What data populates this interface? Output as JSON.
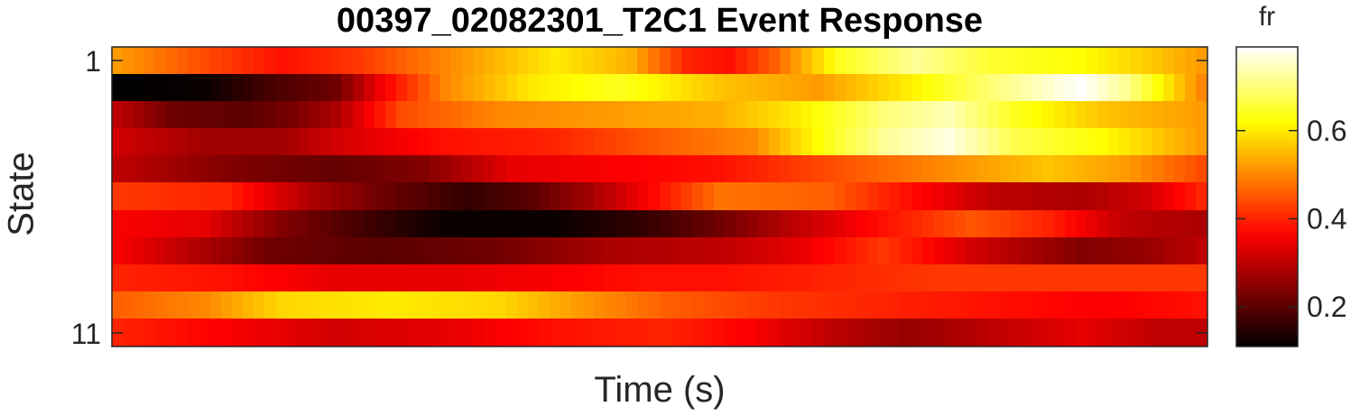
{
  "chart_data": {
    "type": "heatmap",
    "title": "00397_02082301_T2C1 Event Response",
    "xlabel": "Time (s)",
    "ylabel": "State",
    "y_ticks": [
      1,
      11
    ],
    "colorbar": {
      "label": "fr",
      "colormap": "hot",
      "range": [
        0.11,
        0.79
      ],
      "ticks": [
        0.2,
        0.4,
        0.6
      ]
    },
    "n_cols": 100,
    "rows": [
      {
        "state": 1,
        "keypoints": [
          [
            0,
            0.52
          ],
          [
            8,
            0.44
          ],
          [
            15,
            0.38
          ],
          [
            22,
            0.42
          ],
          [
            30,
            0.5
          ],
          [
            40,
            0.6
          ],
          [
            47,
            0.54
          ],
          [
            52,
            0.4
          ],
          [
            56,
            0.38
          ],
          [
            60,
            0.46
          ],
          [
            66,
            0.64
          ],
          [
            73,
            0.72
          ],
          [
            80,
            0.65
          ],
          [
            88,
            0.62
          ],
          [
            95,
            0.56
          ],
          [
            99,
            0.52
          ]
        ]
      },
      {
        "state": 2,
        "keypoints": [
          [
            0,
            0.11
          ],
          [
            8,
            0.12
          ],
          [
            14,
            0.18
          ],
          [
            20,
            0.22
          ],
          [
            24,
            0.35
          ],
          [
            30,
            0.5
          ],
          [
            38,
            0.6
          ],
          [
            46,
            0.64
          ],
          [
            55,
            0.56
          ],
          [
            64,
            0.52
          ],
          [
            72,
            0.6
          ],
          [
            80,
            0.7
          ],
          [
            88,
            0.79
          ],
          [
            92,
            0.72
          ],
          [
            97,
            0.56
          ],
          [
            99,
            0.5
          ]
        ]
      },
      {
        "state": 3,
        "keypoints": [
          [
            0,
            0.3
          ],
          [
            5,
            0.22
          ],
          [
            12,
            0.2
          ],
          [
            16,
            0.23
          ],
          [
            20,
            0.28
          ],
          [
            26,
            0.44
          ],
          [
            35,
            0.5
          ],
          [
            45,
            0.52
          ],
          [
            55,
            0.54
          ],
          [
            62,
            0.6
          ],
          [
            70,
            0.7
          ],
          [
            76,
            0.74
          ],
          [
            82,
            0.64
          ],
          [
            90,
            0.56
          ],
          [
            99,
            0.52
          ]
        ]
      },
      {
        "state": 4,
        "keypoints": [
          [
            0,
            0.32
          ],
          [
            8,
            0.27
          ],
          [
            15,
            0.27
          ],
          [
            20,
            0.32
          ],
          [
            30,
            0.38
          ],
          [
            40,
            0.4
          ],
          [
            50,
            0.46
          ],
          [
            58,
            0.5
          ],
          [
            65,
            0.64
          ],
          [
            70,
            0.72
          ],
          [
            76,
            0.77
          ],
          [
            82,
            0.67
          ],
          [
            90,
            0.62
          ],
          [
            99,
            0.52
          ]
        ]
      },
      {
        "state": 5,
        "keypoints": [
          [
            0,
            0.3
          ],
          [
            10,
            0.24
          ],
          [
            20,
            0.21
          ],
          [
            28,
            0.24
          ],
          [
            36,
            0.34
          ],
          [
            45,
            0.36
          ],
          [
            55,
            0.38
          ],
          [
            65,
            0.44
          ],
          [
            75,
            0.5
          ],
          [
            85,
            0.56
          ],
          [
            92,
            0.52
          ],
          [
            99,
            0.44
          ]
        ]
      },
      {
        "state": 6,
        "keypoints": [
          [
            0,
            0.42
          ],
          [
            10,
            0.4
          ],
          [
            18,
            0.28
          ],
          [
            24,
            0.22
          ],
          [
            32,
            0.16
          ],
          [
            38,
            0.2
          ],
          [
            45,
            0.3
          ],
          [
            55,
            0.48
          ],
          [
            65,
            0.46
          ],
          [
            72,
            0.38
          ],
          [
            80,
            0.3
          ],
          [
            88,
            0.28
          ],
          [
            94,
            0.32
          ],
          [
            99,
            0.4
          ]
        ]
      },
      {
        "state": 7,
        "keypoints": [
          [
            0,
            0.36
          ],
          [
            8,
            0.34
          ],
          [
            15,
            0.24
          ],
          [
            22,
            0.18
          ],
          [
            30,
            0.12
          ],
          [
            40,
            0.12
          ],
          [
            48,
            0.16
          ],
          [
            55,
            0.22
          ],
          [
            62,
            0.3
          ],
          [
            70,
            0.38
          ],
          [
            78,
            0.45
          ],
          [
            85,
            0.4
          ],
          [
            92,
            0.3
          ],
          [
            99,
            0.28
          ]
        ]
      },
      {
        "state": 8,
        "keypoints": [
          [
            0,
            0.36
          ],
          [
            6,
            0.3
          ],
          [
            14,
            0.22
          ],
          [
            24,
            0.2
          ],
          [
            34,
            0.22
          ],
          [
            45,
            0.28
          ],
          [
            55,
            0.3
          ],
          [
            62,
            0.34
          ],
          [
            70,
            0.42
          ],
          [
            78,
            0.32
          ],
          [
            88,
            0.24
          ],
          [
            94,
            0.26
          ],
          [
            99,
            0.3
          ]
        ]
      },
      {
        "state": 9,
        "keypoints": [
          [
            0,
            0.4
          ],
          [
            10,
            0.38
          ],
          [
            20,
            0.34
          ],
          [
            30,
            0.34
          ],
          [
            40,
            0.36
          ],
          [
            48,
            0.38
          ],
          [
            55,
            0.38
          ],
          [
            65,
            0.4
          ],
          [
            75,
            0.42
          ],
          [
            85,
            0.42
          ],
          [
            99,
            0.42
          ]
        ]
      },
      {
        "state": 10,
        "keypoints": [
          [
            0,
            0.46
          ],
          [
            8,
            0.5
          ],
          [
            15,
            0.58
          ],
          [
            25,
            0.6
          ],
          [
            35,
            0.58
          ],
          [
            42,
            0.52
          ],
          [
            50,
            0.46
          ],
          [
            60,
            0.42
          ],
          [
            70,
            0.4
          ],
          [
            80,
            0.38
          ],
          [
            90,
            0.36
          ],
          [
            99,
            0.38
          ]
        ]
      },
      {
        "state": 11,
        "keypoints": [
          [
            0,
            0.4
          ],
          [
            10,
            0.36
          ],
          [
            20,
            0.32
          ],
          [
            30,
            0.34
          ],
          [
            40,
            0.38
          ],
          [
            50,
            0.4
          ],
          [
            58,
            0.36
          ],
          [
            65,
            0.3
          ],
          [
            72,
            0.26
          ],
          [
            80,
            0.3
          ],
          [
            88,
            0.34
          ],
          [
            95,
            0.3
          ],
          [
            99,
            0.3
          ]
        ]
      }
    ]
  }
}
